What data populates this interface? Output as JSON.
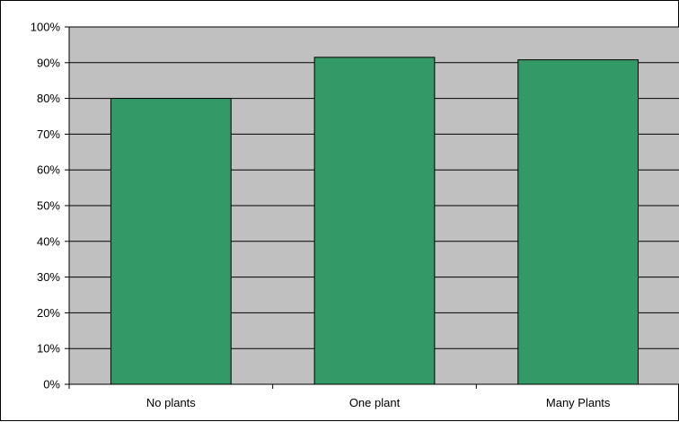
{
  "chart_data": {
    "type": "bar",
    "title": "",
    "xlabel": "",
    "ylabel": "",
    "categories": [
      "No plants",
      "One plant",
      "Many Plants"
    ],
    "values": [
      0.8,
      0.915,
      0.908
    ],
    "y_ticks": [
      "0%",
      "10%",
      "20%",
      "30%",
      "40%",
      "50%",
      "60%",
      "70%",
      "80%",
      "90%",
      "100%"
    ],
    "ylim": [
      0,
      1
    ],
    "grid": true,
    "legend": "none",
    "colors": {
      "plot_background": "#c0c0c0",
      "bar_fill": "#339966",
      "bar_stroke": "#000000",
      "gridline": "#000000"
    }
  }
}
